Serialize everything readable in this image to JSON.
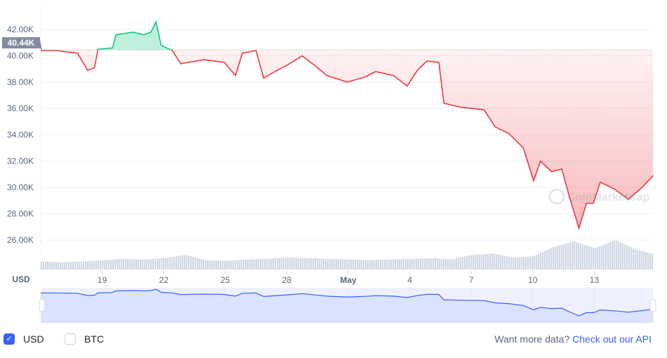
{
  "chart_data": {
    "type": "line",
    "ylabel": "USD",
    "ylim": [
      25000,
      43000
    ],
    "yticks": [
      "42.00K",
      "40.00K",
      "38.00K",
      "36.00K",
      "34.00K",
      "32.00K",
      "30.00K",
      "28.00K",
      "26.00K"
    ],
    "ytick_values": [
      42000,
      40000,
      38000,
      36000,
      34000,
      32000,
      30000,
      28000,
      26000
    ],
    "xticks": [
      "19",
      "22",
      "25",
      "28",
      "May",
      "4",
      "7",
      "10",
      "13"
    ],
    "xtick_dates": [
      "Apr 19",
      "Apr 22",
      "Apr 25",
      "Apr 28",
      "May 1",
      "May 4",
      "May 7",
      "May 10",
      "May 13"
    ],
    "reference_value": 40440,
    "reference_label": "40.44K",
    "grid": true,
    "colors": {
      "above": "#16c784",
      "below": "#ea3943",
      "navigator": "#3861fb"
    },
    "watermark": "CoinMarketCap",
    "series": [
      {
        "points": [
          [
            "Apr 16 00:00",
            40400
          ],
          [
            "Apr 16 18:00",
            40400
          ],
          [
            "Apr 17 19:00",
            40200
          ],
          [
            "Apr 18 07:00",
            38900
          ],
          [
            "Apr 18 15:00",
            39100
          ],
          [
            "Apr 18 19:00",
            40500
          ],
          [
            "Apr 19 12:00",
            40600
          ],
          [
            "Apr 19 16:00",
            41600
          ],
          [
            "Apr 20 12:00",
            41800
          ],
          [
            "Apr 21 01:00",
            41600
          ],
          [
            "Apr 21 09:00",
            41800
          ],
          [
            "Apr 21 15:00",
            42600
          ],
          [
            "Apr 21 21:00",
            40800
          ],
          [
            "Apr 22 10:00",
            40400
          ],
          [
            "Apr 22 20:00",
            39400
          ],
          [
            "Apr 23 23:00",
            39700
          ],
          [
            "Apr 24 23:00",
            39500
          ],
          [
            "Apr 25 12:00",
            38500
          ],
          [
            "Apr 25 20:00",
            40200
          ],
          [
            "Apr 26 12:00",
            40400
          ],
          [
            "Apr 26 21:00",
            38300
          ],
          [
            "Apr 27 13:00",
            38900
          ],
          [
            "Apr 28 01:00",
            39300
          ],
          [
            "Apr 28 18:00",
            40000
          ],
          [
            "Apr 29 10:00",
            39200
          ],
          [
            "Apr 29 23:00",
            38500
          ],
          [
            "Apr 30 23:00",
            38000
          ],
          [
            "May 1 20:00",
            38400
          ],
          [
            "May 2 08:00",
            38800
          ],
          [
            "May 3 05:00",
            38500
          ],
          [
            "May 3 21:00",
            37700
          ],
          [
            "May 4 09:00",
            38900
          ],
          [
            "May 4 20:00",
            39600
          ],
          [
            "May 5 10:00",
            39500
          ],
          [
            "May 5 16:00",
            36400
          ],
          [
            "May 6 11:00",
            36100
          ],
          [
            "May 7 15:00",
            35900
          ],
          [
            "May 8 04:00",
            34600
          ],
          [
            "May 8 20:00",
            34100
          ],
          [
            "May 9 13:00",
            33000
          ],
          [
            "May 10 01:00",
            30500
          ],
          [
            "May 10 09:00",
            32000
          ],
          [
            "May 10 22:00",
            31200
          ],
          [
            "May 11 10:00",
            31400
          ],
          [
            "May 11 18:00",
            29500
          ],
          [
            "May 12 06:00",
            26900
          ],
          [
            "May 12 15:00",
            28800
          ],
          [
            "May 12 23:00",
            28800
          ],
          [
            "May 13 07:00",
            30400
          ],
          [
            "May 13 23:00",
            29900
          ],
          [
            "May 14 16:00",
            29100
          ],
          [
            "May 15 08:00",
            30000
          ],
          [
            "May 15 21:00",
            30900
          ]
        ]
      }
    ],
    "volume_relative": [
      12,
      11,
      12,
      14,
      16,
      15,
      17,
      22,
      14,
      13,
      15,
      16,
      18,
      17,
      16,
      15,
      14,
      15,
      16,
      17,
      15,
      22,
      24,
      18,
      20,
      34,
      42,
      32,
      44,
      30,
      22,
      14
    ]
  },
  "footer": {
    "usd_label": "USD",
    "btc_label": "BTC",
    "usd_checked": true,
    "btc_checked": false,
    "api_text": "Want more data?",
    "api_link": "Check out our API"
  }
}
